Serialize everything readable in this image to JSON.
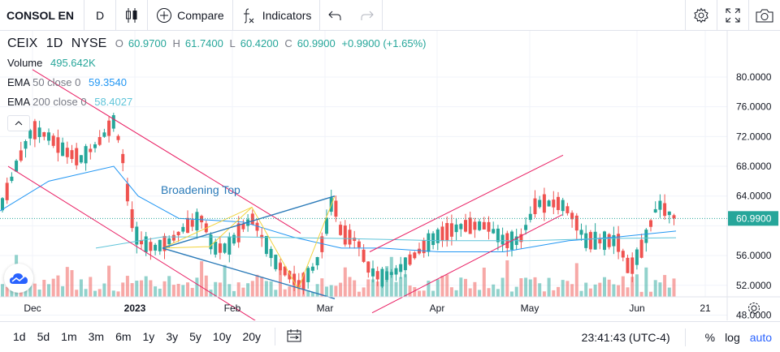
{
  "toolbar": {
    "symbol": "CONSOL EN",
    "interval": "D",
    "compare_label": "Compare",
    "indicators_label": "Indicators"
  },
  "legend": {
    "ticker": "CEIX",
    "interval": "1D",
    "exchange": "NYSE",
    "o_label": "O",
    "o_value": "60.9700",
    "h_label": "H",
    "h_value": "61.7400",
    "l_label": "L",
    "l_value": "60.4200",
    "c_label": "C",
    "c_value": "60.9900",
    "change": "+0.9900 (+1.65%)",
    "volume_label": "Volume",
    "volume_value": "495.642K",
    "ema50_label": "EMA",
    "ema50_params": "50 close 0",
    "ema50_value": "59.3540",
    "ema200_label": "EMA",
    "ema200_params": "200 close 0",
    "ema200_value": "58.4027"
  },
  "pattern_label": "Broadening Top",
  "price_axis": {
    "ticks": [
      "80.0000",
      "76.0000",
      "72.0000",
      "68.0000",
      "64.0000",
      "60.9900",
      "56.0000",
      "52.0000",
      "48.0000"
    ],
    "last_price": "60.9900"
  },
  "time_axis": [
    "Dec",
    "2023",
    "Feb",
    "Mar",
    "Apr",
    "May",
    "Jun",
    "21"
  ],
  "ranges": [
    "1d",
    "5d",
    "1m",
    "3m",
    "6m",
    "1y",
    "3y",
    "5y",
    "10y",
    "20y"
  ],
  "bottom": {
    "time": "23:41:43 (UTC-4)",
    "percent": "%",
    "log": "log",
    "auto": "auto"
  },
  "colors": {
    "up": "#26a69a",
    "down": "#ef5350",
    "ema50": "#2196f3",
    "ema200": "#5ec4d9",
    "trend": "#e91e63",
    "pattern": "#f2d33c",
    "pattern_line": "#2a7ab8"
  }
}
